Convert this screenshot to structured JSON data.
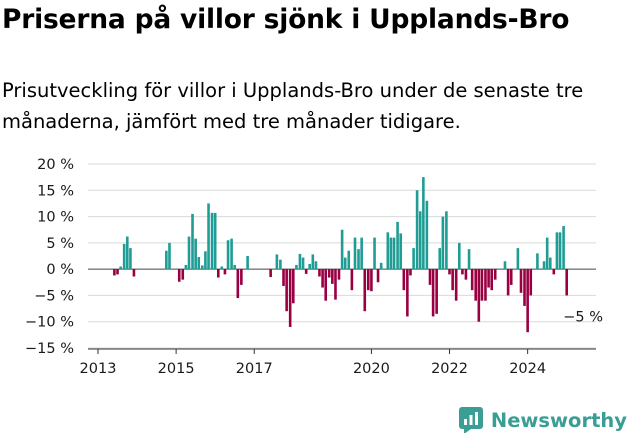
{
  "header": {
    "title": "Priserna på villor sjönk i Upplands-Bro",
    "subtitle": "Prisutveckling för villor i Upplands-Bro under de senaste tre månaderna, jämfört med tre månader tidigare."
  },
  "brand": {
    "name": "Newsworthy",
    "logo_icon": "newsworthy-chart-logo-icon"
  },
  "colors": {
    "positive": "#1f9c94",
    "negative": "#990042",
    "grid": "#d9d9d9"
  },
  "chart_data": {
    "type": "bar",
    "ylim": [
      -15,
      20
    ],
    "xlim": [
      2013.0,
      2025.75
    ],
    "y_ticks": [
      -15,
      -10,
      -5,
      0,
      5,
      10,
      15,
      20
    ],
    "y_tick_labels": [
      "−15 %",
      "−10 %",
      "−5 %",
      "0 %",
      "5 %",
      "10 %",
      "15 %",
      "20 %"
    ],
    "x_ticks": [
      2013,
      2015,
      2017,
      2020,
      2022,
      2024
    ],
    "x_tick_labels": [
      "2013",
      "2015",
      "2017",
      "2020",
      "2022",
      "2024"
    ],
    "grid": "horizontal",
    "annotation": "−5 %",
    "annotation_value": -5,
    "bars": [
      {
        "x": 2013.42,
        "y": -1.2
      },
      {
        "x": 2013.5,
        "y": -1.0
      },
      {
        "x": 2013.58,
        "y": 0.5
      },
      {
        "x": 2013.67,
        "y": 4.8
      },
      {
        "x": 2013.75,
        "y": 6.2
      },
      {
        "x": 2013.83,
        "y": 4.0
      },
      {
        "x": 2013.92,
        "y": -1.4
      },
      {
        "x": 2014.75,
        "y": 3.5
      },
      {
        "x": 2014.83,
        "y": 5.0
      },
      {
        "x": 2015.08,
        "y": -2.4
      },
      {
        "x": 2015.17,
        "y": -2.0
      },
      {
        "x": 2015.25,
        "y": 0.8
      },
      {
        "x": 2015.33,
        "y": 6.2
      },
      {
        "x": 2015.42,
        "y": 10.5
      },
      {
        "x": 2015.5,
        "y": 5.8
      },
      {
        "x": 2015.58,
        "y": 2.3
      },
      {
        "x": 2015.67,
        "y": 0.7
      },
      {
        "x": 2015.75,
        "y": 3.4
      },
      {
        "x": 2015.83,
        "y": 12.5
      },
      {
        "x": 2015.92,
        "y": 10.7
      },
      {
        "x": 2016.0,
        "y": 10.7
      },
      {
        "x": 2016.08,
        "y": -1.6
      },
      {
        "x": 2016.17,
        "y": 0.5
      },
      {
        "x": 2016.25,
        "y": -1.0
      },
      {
        "x": 2016.33,
        "y": 5.5
      },
      {
        "x": 2016.42,
        "y": 5.8
      },
      {
        "x": 2016.5,
        "y": 0.8
      },
      {
        "x": 2016.58,
        "y": -5.5
      },
      {
        "x": 2016.67,
        "y": -3.0
      },
      {
        "x": 2016.83,
        "y": 2.5
      },
      {
        "x": 2017.42,
        "y": -1.5
      },
      {
        "x": 2017.58,
        "y": 2.8
      },
      {
        "x": 2017.67,
        "y": 1.8
      },
      {
        "x": 2017.75,
        "y": -3.2
      },
      {
        "x": 2017.83,
        "y": -8.0
      },
      {
        "x": 2017.92,
        "y": -11.0
      },
      {
        "x": 2018.0,
        "y": -6.5
      },
      {
        "x": 2018.08,
        "y": 0.8
      },
      {
        "x": 2018.17,
        "y": 2.9
      },
      {
        "x": 2018.25,
        "y": 2.2
      },
      {
        "x": 2018.33,
        "y": -0.9
      },
      {
        "x": 2018.42,
        "y": 1.0
      },
      {
        "x": 2018.5,
        "y": 2.8
      },
      {
        "x": 2018.58,
        "y": 1.5
      },
      {
        "x": 2018.67,
        "y": -1.4
      },
      {
        "x": 2018.75,
        "y": -3.5
      },
      {
        "x": 2018.83,
        "y": -6.0
      },
      {
        "x": 2018.92,
        "y": -1.6
      },
      {
        "x": 2019.0,
        "y": -2.8
      },
      {
        "x": 2019.08,
        "y": -5.8
      },
      {
        "x": 2019.17,
        "y": -2.0
      },
      {
        "x": 2019.25,
        "y": 7.5
      },
      {
        "x": 2019.33,
        "y": 2.2
      },
      {
        "x": 2019.42,
        "y": 3.5
      },
      {
        "x": 2019.5,
        "y": -4.0
      },
      {
        "x": 2019.58,
        "y": 6.0
      },
      {
        "x": 2019.67,
        "y": 3.8
      },
      {
        "x": 2019.75,
        "y": 6.0
      },
      {
        "x": 2019.83,
        "y": -8.0
      },
      {
        "x": 2019.92,
        "y": -4.0
      },
      {
        "x": 2020.0,
        "y": -4.2
      },
      {
        "x": 2020.08,
        "y": 6.0
      },
      {
        "x": 2020.17,
        "y": -2.5
      },
      {
        "x": 2020.25,
        "y": 1.2
      },
      {
        "x": 2020.42,
        "y": 7.0
      },
      {
        "x": 2020.5,
        "y": 6.0
      },
      {
        "x": 2020.58,
        "y": 6.0
      },
      {
        "x": 2020.67,
        "y": 9.0
      },
      {
        "x": 2020.75,
        "y": 6.8
      },
      {
        "x": 2020.83,
        "y": -4.0
      },
      {
        "x": 2020.92,
        "y": -9.0
      },
      {
        "x": 2021.0,
        "y": -1.2
      },
      {
        "x": 2021.08,
        "y": 4.0
      },
      {
        "x": 2021.17,
        "y": 15.0
      },
      {
        "x": 2021.25,
        "y": 11.0
      },
      {
        "x": 2021.33,
        "y": 17.5
      },
      {
        "x": 2021.42,
        "y": 13.0
      },
      {
        "x": 2021.5,
        "y": -3.0
      },
      {
        "x": 2021.58,
        "y": -9.0
      },
      {
        "x": 2021.67,
        "y": -8.5
      },
      {
        "x": 2021.75,
        "y": 4.0
      },
      {
        "x": 2021.83,
        "y": 10.0
      },
      {
        "x": 2021.92,
        "y": 11.0
      },
      {
        "x": 2022.0,
        "y": -1.0
      },
      {
        "x": 2022.08,
        "y": -4.0
      },
      {
        "x": 2022.17,
        "y": -6.0
      },
      {
        "x": 2022.25,
        "y": 5.0
      },
      {
        "x": 2022.33,
        "y": -1.0
      },
      {
        "x": 2022.42,
        "y": -2.0
      },
      {
        "x": 2022.5,
        "y": 3.8
      },
      {
        "x": 2022.58,
        "y": -4.0
      },
      {
        "x": 2022.67,
        "y": -6.0
      },
      {
        "x": 2022.75,
        "y": -10.0
      },
      {
        "x": 2022.83,
        "y": -6.0
      },
      {
        "x": 2022.92,
        "y": -6.0
      },
      {
        "x": 2023.0,
        "y": -3.5
      },
      {
        "x": 2023.08,
        "y": -4.0
      },
      {
        "x": 2023.17,
        "y": -2.0
      },
      {
        "x": 2023.42,
        "y": 1.5
      },
      {
        "x": 2023.5,
        "y": -5.0
      },
      {
        "x": 2023.58,
        "y": -3.0
      },
      {
        "x": 2023.75,
        "y": 4.0
      },
      {
        "x": 2023.83,
        "y": -4.5
      },
      {
        "x": 2023.92,
        "y": -7.0
      },
      {
        "x": 2024.0,
        "y": -12.0
      },
      {
        "x": 2024.08,
        "y": -5.0
      },
      {
        "x": 2024.25,
        "y": 3.0
      },
      {
        "x": 2024.42,
        "y": 1.5
      },
      {
        "x": 2024.5,
        "y": 6.0
      },
      {
        "x": 2024.58,
        "y": 2.2
      },
      {
        "x": 2024.67,
        "y": -1.0
      },
      {
        "x": 2024.75,
        "y": 7.0
      },
      {
        "x": 2024.83,
        "y": 7.0
      },
      {
        "x": 2024.92,
        "y": 8.2
      },
      {
        "x": 2025.0,
        "y": -5.0
      }
    ]
  }
}
